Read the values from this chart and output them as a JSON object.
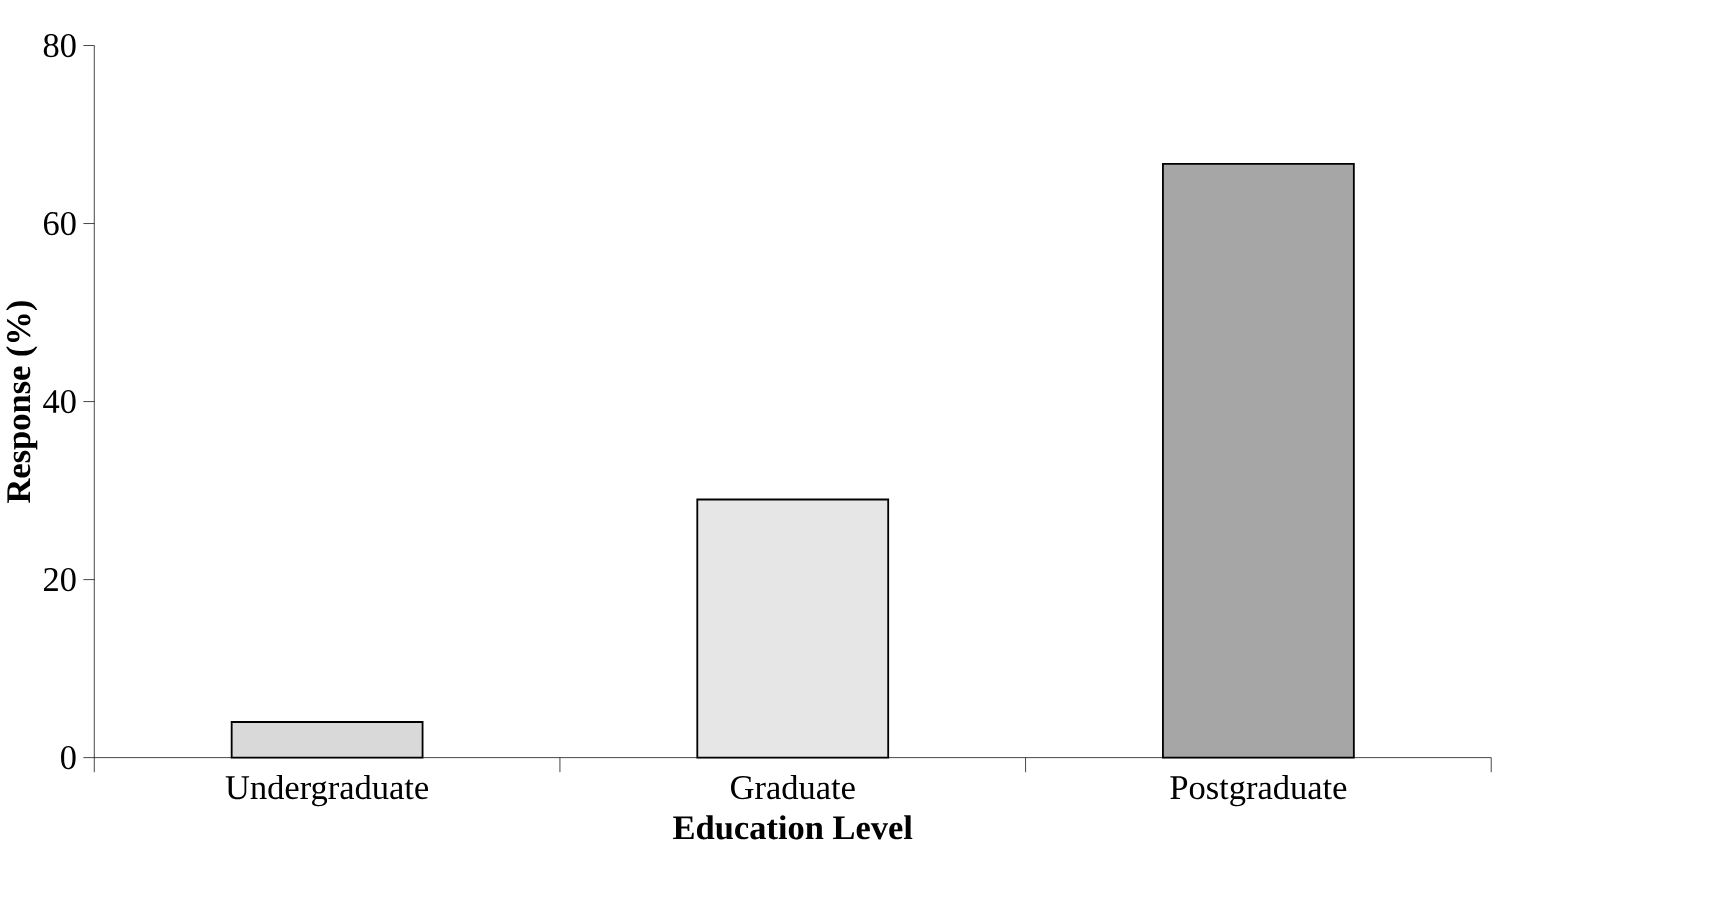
{
  "chart_data": {
    "type": "bar",
    "xlabel": "Education  Level",
    "ylabel": "Response (%)",
    "categories": [
      "Undergraduate",
      "Graduate",
      "Postgraduate"
    ],
    "values": [
      4,
      29,
      66.7
    ],
    "colors": [
      "#d9d9d9",
      "#e6e6e6",
      "#a6a6a6"
    ],
    "ylim": [
      0,
      80
    ],
    "yticks": [
      0,
      20,
      40,
      60,
      80
    ],
    "grid": false
  }
}
